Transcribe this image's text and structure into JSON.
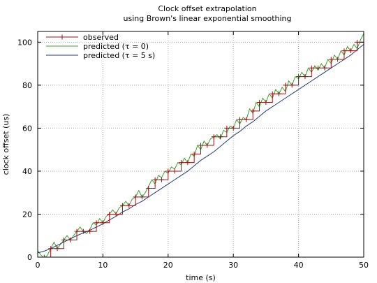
{
  "chart_data": {
    "type": "line",
    "title": [
      "Clock offset extrapolation",
      "using Brown's linear exponential smoothing"
    ],
    "xlabel": "time (s)",
    "ylabel": "clock offset (us)",
    "xlim": [
      0,
      50
    ],
    "ylim": [
      0,
      105
    ],
    "xticks": [
      0,
      10,
      20,
      30,
      40,
      50
    ],
    "yticks": [
      0,
      20,
      40,
      60,
      80,
      100
    ],
    "grid": true,
    "legend": "top-left",
    "series": [
      {
        "name": "observed",
        "color": "#a01010",
        "marker": "plus",
        "style": "step",
        "x": [
          0,
          1,
          2,
          3,
          4,
          5,
          6,
          7,
          8,
          9,
          10,
          11,
          12,
          13,
          14,
          15,
          16,
          17,
          18,
          19,
          20,
          21,
          22,
          23,
          24,
          25,
          26,
          27,
          28,
          29,
          30,
          31,
          32,
          33,
          34,
          35,
          36,
          37,
          38,
          39,
          40,
          41,
          42,
          43,
          44,
          45,
          46,
          47,
          48,
          49,
          50
        ],
        "y": [
          0,
          0,
          4,
          4,
          8,
          8,
          12,
          12,
          12,
          16,
          16,
          20,
          20,
          24,
          24,
          28,
          28,
          32,
          36,
          36,
          40,
          40,
          44,
          44,
          48,
          52,
          52,
          56,
          56,
          60,
          60,
          64,
          64,
          68,
          72,
          72,
          76,
          76,
          80,
          80,
          84,
          84,
          88,
          88,
          88,
          92,
          92,
          96,
          96,
          100,
          100
        ]
      },
      {
        "name": "predicted (τ = 0)",
        "color": "#3aa02a",
        "x": [
          0,
          0.5,
          1,
          1.5,
          2,
          2.5,
          3,
          3.5,
          4,
          4.5,
          5,
          5.5,
          6,
          6.5,
          7,
          7.5,
          8,
          8.5,
          9,
          9.5,
          10,
          10.5,
          11,
          11.5,
          12,
          12.5,
          13,
          13.5,
          14,
          14.5,
          15,
          15.5,
          16,
          16.5,
          17,
          17.5,
          18,
          18.5,
          19,
          19.5,
          20,
          20.5,
          21,
          21.5,
          22,
          22.5,
          23,
          23.5,
          24,
          24.5,
          25,
          25.5,
          26,
          26.5,
          27,
          27.5,
          28,
          28.5,
          29,
          29.5,
          30,
          30.5,
          31,
          31.5,
          32,
          32.5,
          33,
          33.5,
          34,
          34.5,
          35,
          35.5,
          36,
          36.5,
          37,
          37.5,
          38,
          38.5,
          39,
          39.5,
          40,
          40.5,
          41,
          41.5,
          42,
          42.5,
          43,
          43.5,
          44,
          44.5,
          45,
          45.5,
          46,
          46.5,
          47,
          47.5,
          48,
          48.5,
          49,
          49.5,
          50
        ],
        "y": [
          3,
          1,
          -0.5,
          1,
          4,
          7,
          4,
          6,
          8,
          10,
          8,
          10,
          12,
          14,
          12,
          11,
          13,
          16,
          15,
          18,
          16,
          19,
          20,
          22,
          20,
          23,
          24,
          26,
          24,
          27,
          28,
          31,
          28,
          30,
          33,
          36,
          34,
          38,
          37,
          40,
          39,
          42,
          41,
          44,
          43,
          46,
          44,
          48,
          47,
          52,
          50,
          54,
          52,
          55,
          56,
          57,
          55,
          59,
          58,
          61,
          60,
          64,
          62,
          65,
          64,
          69,
          67,
          72,
          70,
          74,
          72,
          76,
          74,
          78,
          76,
          79,
          77,
          82,
          80,
          84,
          83,
          86,
          84,
          88,
          86,
          89,
          87,
          90,
          88,
          92,
          90,
          94,
          92,
          96,
          94,
          98,
          96,
          99,
          97,
          101,
          104
        ]
      },
      {
        "name": "predicted (τ = 5 s)",
        "color": "#1f3a7a",
        "x": [
          0,
          1,
          2,
          3,
          4,
          5,
          6,
          7,
          8,
          9,
          10,
          11,
          12,
          13,
          14,
          15,
          16,
          17,
          18,
          19,
          20,
          21,
          22,
          23,
          24,
          25,
          26,
          27,
          28,
          29,
          30,
          31,
          32,
          33,
          34,
          35,
          36,
          37,
          38,
          39,
          40,
          41,
          42,
          43,
          44,
          45,
          46,
          47,
          48,
          49,
          50
        ],
        "y": [
          2,
          2.8,
          4,
          5.5,
          7,
          8.5,
          10,
          11.3,
          12.5,
          14,
          15.5,
          17.3,
          19,
          21,
          22.5,
          24.5,
          26,
          28,
          30,
          32,
          34,
          36,
          38,
          40,
          42.5,
          45,
          47,
          49,
          51.5,
          54,
          56.5,
          58.5,
          61,
          63,
          65.5,
          68,
          70,
          72,
          74,
          76,
          78,
          80,
          82,
          84,
          86,
          88,
          90,
          92,
          94,
          96.5,
          99
        ]
      }
    ]
  }
}
